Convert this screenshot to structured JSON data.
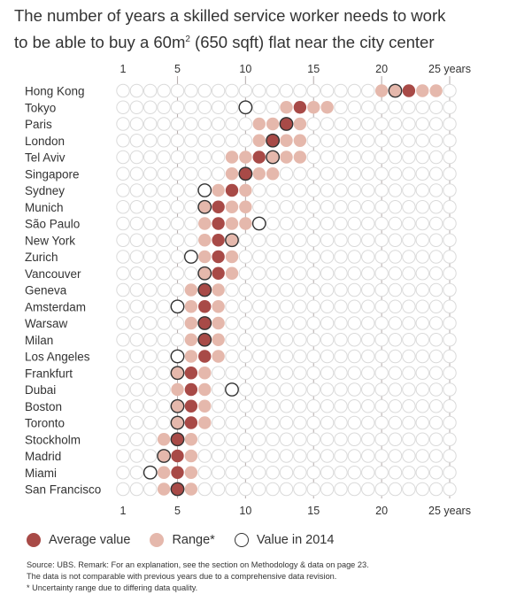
{
  "title": {
    "line1": "The number of years a skilled service worker needs to work",
    "line2_pre": "to be able to buy a 60m",
    "line2_sup": "2",
    "line2_post": " (650 sqft) flat near the city center"
  },
  "chart_data": {
    "type": "dot-range",
    "xlim": [
      1,
      25
    ],
    "x_ticks": [
      1,
      5,
      10,
      15,
      20
    ],
    "x_tick_labels": [
      "1",
      "5",
      "10",
      "15",
      "20"
    ],
    "x_unit_label": "25 years",
    "x_unit_value": 25,
    "grid": "vertical lines at 5, 10, 15, 20, 25",
    "cities": [
      {
        "name": "Hong Kong",
        "range": [
          20,
          24
        ],
        "average": 22,
        "value_2014": 21
      },
      {
        "name": "Tokyo",
        "range": [
          13,
          16
        ],
        "average": 14,
        "value_2014": 10
      },
      {
        "name": "Paris",
        "range": [
          11,
          14
        ],
        "average": 13,
        "value_2014": 13
      },
      {
        "name": "London",
        "range": [
          11,
          14
        ],
        "average": 12,
        "value_2014": 12
      },
      {
        "name": "Tel Aviv",
        "range": [
          9,
          14
        ],
        "average": 11,
        "value_2014": 12
      },
      {
        "name": "Singapore",
        "range": [
          9,
          12
        ],
        "average": 10,
        "value_2014": 10
      },
      {
        "name": "Sydney",
        "range": [
          8,
          10
        ],
        "average": 9,
        "value_2014": 7
      },
      {
        "name": "Munich",
        "range": [
          7,
          10
        ],
        "average": 8,
        "value_2014": 7
      },
      {
        "name": "São Paulo",
        "range": [
          7,
          10
        ],
        "average": 8,
        "value_2014": 11
      },
      {
        "name": "New York",
        "range": [
          7,
          9
        ],
        "average": 8,
        "value_2014": 9
      },
      {
        "name": "Zurich",
        "range": [
          7,
          9
        ],
        "average": 8,
        "value_2014": 6
      },
      {
        "name": "Vancouver",
        "range": [
          7,
          9
        ],
        "average": 8,
        "value_2014": 7
      },
      {
        "name": "Geneva",
        "range": [
          6,
          8
        ],
        "average": 7,
        "value_2014": 7
      },
      {
        "name": "Amsterdam",
        "range": [
          6,
          8
        ],
        "average": 7,
        "value_2014": 5
      },
      {
        "name": "Warsaw",
        "range": [
          6,
          8
        ],
        "average": 7,
        "value_2014": 7
      },
      {
        "name": "Milan",
        "range": [
          6,
          8
        ],
        "average": 7,
        "value_2014": 7
      },
      {
        "name": "Los Angeles",
        "range": [
          6,
          8
        ],
        "average": 7,
        "value_2014": 5
      },
      {
        "name": "Frankfurt",
        "range": [
          5,
          7
        ],
        "average": 6,
        "value_2014": 5
      },
      {
        "name": "Dubai",
        "range": [
          5,
          7
        ],
        "average": 6,
        "value_2014": 9
      },
      {
        "name": "Boston",
        "range": [
          5,
          7
        ],
        "average": 6,
        "value_2014": 5
      },
      {
        "name": "Toronto",
        "range": [
          5,
          7
        ],
        "average": 6,
        "value_2014": 5
      },
      {
        "name": "Stockholm",
        "range": [
          4,
          6
        ],
        "average": 5,
        "value_2014": 5
      },
      {
        "name": "Madrid",
        "range": [
          4,
          6
        ],
        "average": 5,
        "value_2014": 4
      },
      {
        "name": "Miami",
        "range": [
          4,
          6
        ],
        "average": 5,
        "value_2014": 3
      },
      {
        "name": "San Francisco",
        "range": [
          4,
          6
        ],
        "average": 5,
        "value_2014": 5
      }
    ]
  },
  "legend": {
    "average_label": "Average value",
    "range_label": "Range*",
    "value_2014_label": "Value in 2014"
  },
  "footnotes": {
    "source": "Source: UBS. Remark: For an explanation, see the section on Methodology & data on page 23.",
    "comparability": "The data is not comparable with previous years due to a comprehensive data revision.",
    "uncertainty": "* Uncertainty range due to differing data quality."
  },
  "colors": {
    "average": "#a84a47",
    "range": "#e5b8ac",
    "empty_circle": "#dadada",
    "outline_2014": "#333333",
    "gridline": "#b9b0b0",
    "text": "#333333"
  }
}
